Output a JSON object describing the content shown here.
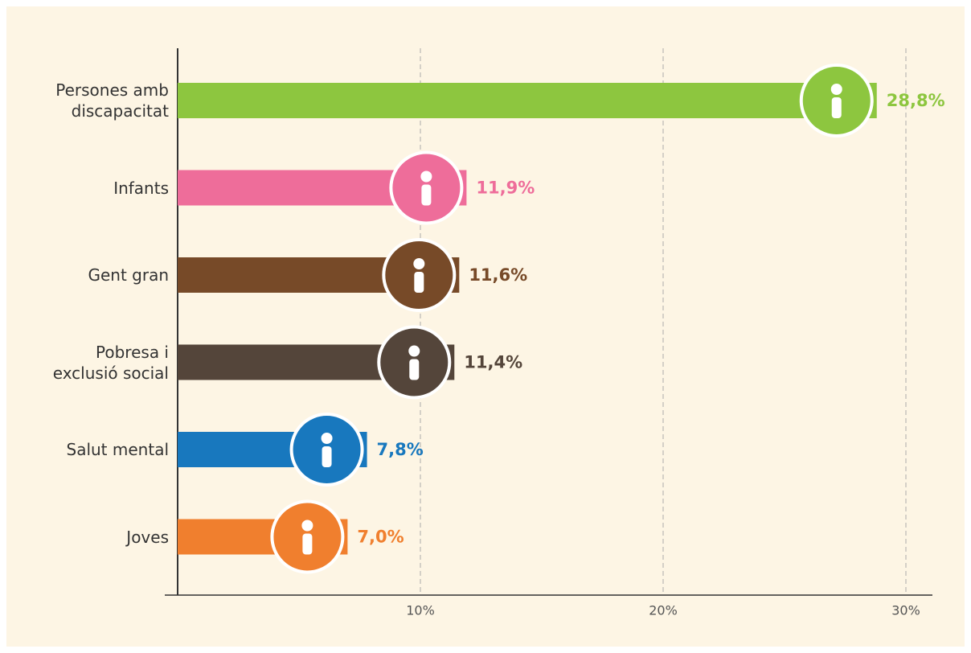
{
  "chart_data": {
    "type": "hbar",
    "categories": [
      "Persones amb\ndiscapacitat",
      "Infants",
      "Gent gran",
      "Pobresa i\nexclusió social",
      "Salut mental",
      "Joves"
    ],
    "values": [
      28.8,
      11.9,
      11.6,
      11.4,
      7.8,
      7.0
    ],
    "value_labels": [
      "28,8%",
      "11,9%",
      "11,6%",
      "11,4%",
      "7,8%",
      "7,0%"
    ],
    "colors": [
      "#8dc63f",
      "#ee6d9a",
      "#774a28",
      "#54453a",
      "#1878be",
      "#f07f2e"
    ],
    "xlim": [
      0,
      31
    ],
    "xticks": [
      {
        "value": 10,
        "label": "10%"
      },
      {
        "value": 20,
        "label": "20%"
      },
      {
        "value": 30,
        "label": "30%"
      }
    ],
    "grid": true
  }
}
